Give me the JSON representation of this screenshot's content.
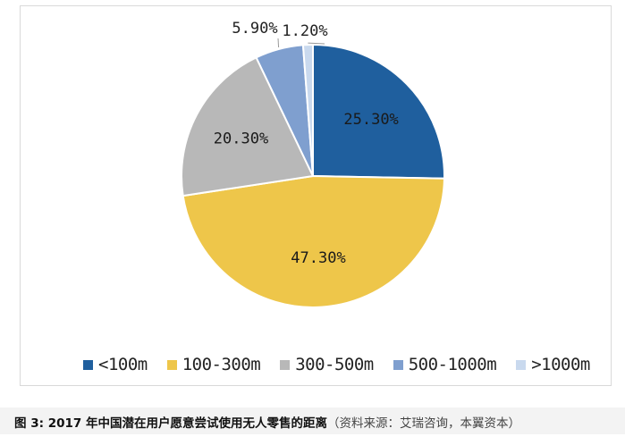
{
  "chart_data": {
    "type": "pie",
    "categories": [
      "<100m",
      "100-300m",
      "300-500m",
      "500-1000m",
      ">1000m"
    ],
    "values": [
      25.3,
      47.3,
      20.3,
      5.9,
      1.2
    ],
    "data_labels": [
      "25.30%",
      "47.30%",
      "20.30%",
      "5.90%",
      "1.20%"
    ],
    "colors": [
      "#1f5f9e",
      "#eec64a",
      "#b8b8b8",
      "#7f9fcf",
      "#c9d9ee"
    ],
    "legend_position": "bottom",
    "start_angle_deg": 0,
    "direction": "clockwise"
  },
  "caption": {
    "figure_title": "图 3: 2017 年中国潜在用户愿意尝试使用无人零售的距离",
    "source": "（资料来源：艾瑞咨询，本翼资本）"
  }
}
